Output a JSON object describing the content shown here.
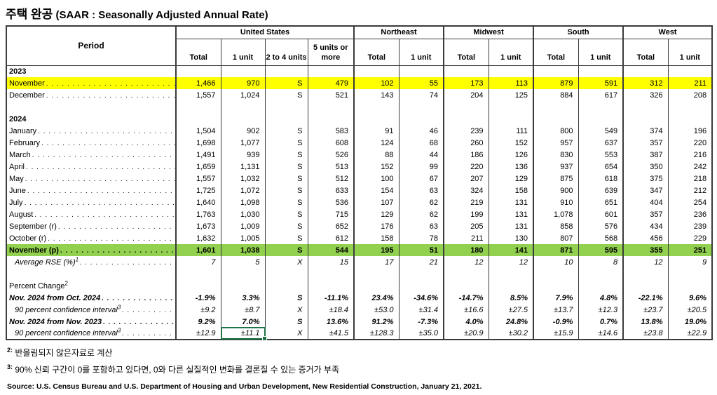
{
  "title": {
    "korean": "주택 완공",
    "english": "(SAAR : Seasonally Adjusted Annual Rate)"
  },
  "colors": {
    "highlight_yellow": "#ffff00",
    "highlight_green": "#92d050",
    "selection_green": "#217346",
    "grid_line": "#3b3b3b"
  },
  "table": {
    "header": {
      "period": "Period",
      "groups": [
        {
          "label": "United States",
          "cols": [
            "Total",
            "1 unit",
            "2 to 4 units",
            "5 units or more"
          ]
        },
        {
          "label": "Northeast",
          "cols": [
            "Total",
            "1 unit"
          ]
        },
        {
          "label": "Midwest",
          "cols": [
            "Total",
            "1 unit"
          ]
        },
        {
          "label": "South",
          "cols": [
            "Total",
            "1 unit"
          ]
        },
        {
          "label": "West",
          "cols": [
            "Total",
            "1 unit"
          ]
        }
      ]
    },
    "rows": [
      {
        "label": "2023",
        "type": "year"
      },
      {
        "label": "November",
        "dots": true,
        "highlight": "yellow",
        "values": [
          "1,466",
          "970",
          "S",
          "479",
          "102",
          "55",
          "173",
          "113",
          "879",
          "591",
          "312",
          "211"
        ]
      },
      {
        "label": "December",
        "dots": true,
        "values": [
          "1,557",
          "1,024",
          "S",
          "521",
          "143",
          "74",
          "204",
          "125",
          "884",
          "617",
          "326",
          "208"
        ]
      },
      {
        "type": "blank"
      },
      {
        "label": "2024",
        "type": "year"
      },
      {
        "label": "January",
        "dots": true,
        "values": [
          "1,504",
          "902",
          "S",
          "583",
          "91",
          "46",
          "239",
          "111",
          "800",
          "549",
          "374",
          "196"
        ]
      },
      {
        "label": "February",
        "dots": true,
        "values": [
          "1,698",
          "1,077",
          "S",
          "608",
          "124",
          "68",
          "260",
          "152",
          "957",
          "637",
          "357",
          "220"
        ]
      },
      {
        "label": "March",
        "dots": true,
        "values": [
          "1,491",
          "939",
          "S",
          "526",
          "88",
          "44",
          "186",
          "126",
          "830",
          "553",
          "387",
          "216"
        ]
      },
      {
        "label": "April",
        "dots": true,
        "values": [
          "1,659",
          "1,131",
          "S",
          "513",
          "152",
          "99",
          "220",
          "136",
          "937",
          "654",
          "350",
          "242"
        ]
      },
      {
        "label": "May",
        "dots": true,
        "values": [
          "1,557",
          "1,032",
          "S",
          "512",
          "100",
          "67",
          "207",
          "129",
          "875",
          "618",
          "375",
          "218"
        ]
      },
      {
        "label": "June",
        "dots": true,
        "values": [
          "1,725",
          "1,072",
          "S",
          "633",
          "154",
          "63",
          "324",
          "158",
          "900",
          "639",
          "347",
          "212"
        ]
      },
      {
        "label": "July",
        "dots": true,
        "values": [
          "1,640",
          "1,098",
          "S",
          "536",
          "107",
          "62",
          "219",
          "131",
          "910",
          "651",
          "404",
          "254"
        ]
      },
      {
        "label": "August",
        "dots": true,
        "values": [
          "1,763",
          "1,030",
          "S",
          "715",
          "129",
          "62",
          "199",
          "131",
          "1,078",
          "601",
          "357",
          "236"
        ]
      },
      {
        "label": "September (r)",
        "dots": true,
        "values": [
          "1,673",
          "1,009",
          "S",
          "652",
          "176",
          "63",
          "205",
          "131",
          "858",
          "576",
          "434",
          "239"
        ]
      },
      {
        "label": "October (r)",
        "dots": true,
        "values": [
          "1,632",
          "1,005",
          "S",
          "612",
          "158",
          "78",
          "211",
          "130",
          "807",
          "568",
          "456",
          "229"
        ]
      },
      {
        "label": "November (p)",
        "dots": true,
        "highlight": "green",
        "values": [
          "1,601",
          "1,038",
          "S",
          "544",
          "195",
          "51",
          "180",
          "141",
          "871",
          "595",
          "355",
          "251"
        ]
      },
      {
        "label": "Average RSE (%)",
        "sup": "1",
        "dots": true,
        "style": "italic",
        "indent": true,
        "values": [
          "7",
          "5",
          "X",
          "15",
          "17",
          "21",
          "12",
          "12",
          "10",
          "8",
          "12",
          "9"
        ]
      },
      {
        "type": "blank"
      },
      {
        "label": "Percent Change",
        "sup": "2",
        "type": "plain"
      },
      {
        "label": "Nov. 2024 from Oct. 2024",
        "dots": true,
        "style": "boldit",
        "values": [
          "-1.9%",
          "3.3%",
          "S",
          "-11.1%",
          "23.4%",
          "-34.6%",
          "-14.7%",
          "8.5%",
          "7.9%",
          "4.8%",
          "-22.1%",
          "9.6%"
        ]
      },
      {
        "label": "90 percent confidence interval",
        "sup": "3",
        "dots": true,
        "style": "italic",
        "indent": true,
        "values": [
          "±9.2",
          "±8.7",
          "X",
          "±18.4",
          "±53.0",
          "±31.4",
          "±16.6",
          "±27.5",
          "±13.7",
          "±12.3",
          "±23.7",
          "±20.5"
        ]
      },
      {
        "label": "Nov. 2024 from Nov. 2023",
        "dots": true,
        "style": "boldit",
        "values": [
          "9.2%",
          "7.0%",
          "S",
          "13.6%",
          "91.2%",
          "-7.3%",
          "4.0%",
          "24.8%",
          "-0.9%",
          "0.7%",
          "13.8%",
          "19.0%"
        ]
      },
      {
        "label": "90 percent confidence interval",
        "sup": "3",
        "dots": true,
        "style": "italic",
        "indent": true,
        "selected": 1,
        "values": [
          "±12.9",
          "±11.1",
          "X",
          "±41.5",
          "±128.3",
          "±35.0",
          "±20.9",
          "±30.2",
          "±15.9",
          "±14.6",
          "±23.8",
          "±22.9"
        ]
      }
    ]
  },
  "footnotes": [
    {
      "sup": "2:",
      "text": "반올림되지 않은자료로 계산"
    },
    {
      "sup": "3:",
      "text": "90% 신뢰 구간이 0를 포함하고 있다면, 0와 다른 실질적인 변화를 결론질 수 있는 증거가 부족"
    }
  ],
  "source": "Source: U.S. Census Bureau and U.S. Department of Housing and Urban Development, New Residential Construction, January 21, 2021."
}
